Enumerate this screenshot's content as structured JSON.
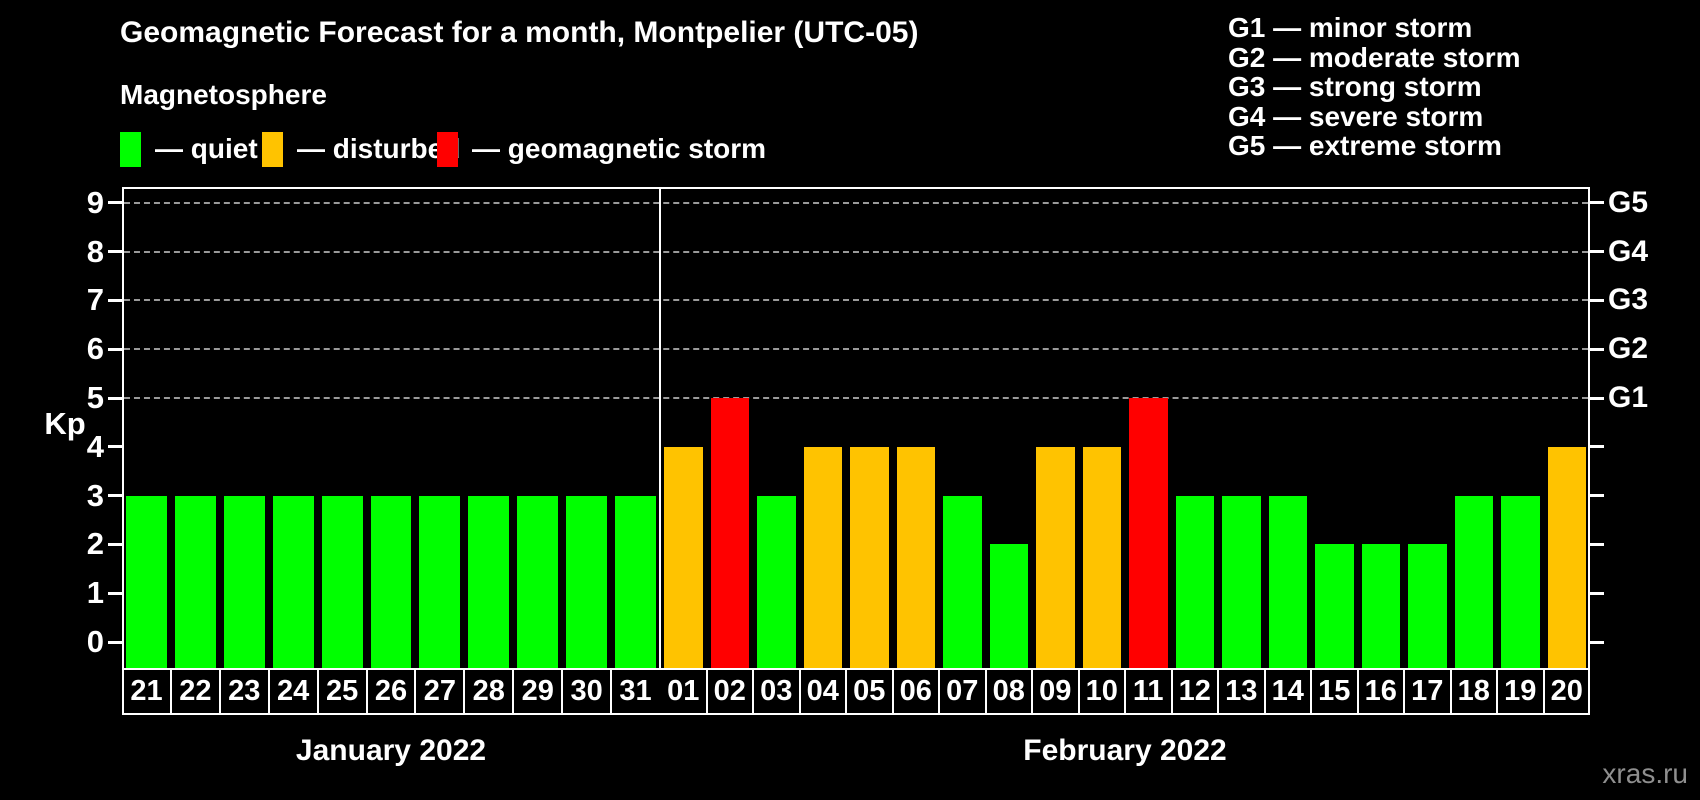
{
  "header": {
    "title": "Geomagnetic Forecast for a month, Montpelier (UTC-05)",
    "subtitle": "Magnetosphere",
    "legend": [
      {
        "status": "quiet",
        "label": "— quiet",
        "color": "#00ff00"
      },
      {
        "status": "disturbed",
        "label": "— disturbed",
        "color": "#ffc300"
      },
      {
        "status": "storm",
        "label": "— geomagnetic storm",
        "color": "#ff0000"
      }
    ],
    "g_scale_legend": [
      "G1 — minor storm",
      "G2 — moderate storm",
      "G3 — strong storm",
      "G4 — severe storm",
      "G5 — extreme storm"
    ]
  },
  "chart_data": {
    "type": "bar",
    "title": "Geomagnetic Forecast for a month, Montpelier (UTC-05)",
    "ylabel": "Kp",
    "ylim": [
      0,
      9
    ],
    "yticks": [
      "0",
      "1",
      "2",
      "3",
      "4",
      "5",
      "6",
      "7",
      "8",
      "9"
    ],
    "grid_levels": [
      5,
      6,
      7,
      8,
      9
    ],
    "right_axis_labels": [
      {
        "kp": 5,
        "label": "G1"
      },
      {
        "kp": 6,
        "label": "G2"
      },
      {
        "kp": 7,
        "label": "G3"
      },
      {
        "kp": 8,
        "label": "G4"
      },
      {
        "kp": 9,
        "label": "G5"
      }
    ],
    "status_colors": {
      "quiet": "#00ff00",
      "disturbed": "#ffc300",
      "storm": "#ff0000"
    },
    "months": [
      {
        "label": "January 2022",
        "days": [
          {
            "date": "21",
            "kp": 3,
            "status": "quiet"
          },
          {
            "date": "22",
            "kp": 3,
            "status": "quiet"
          },
          {
            "date": "23",
            "kp": 3,
            "status": "quiet"
          },
          {
            "date": "24",
            "kp": 3,
            "status": "quiet"
          },
          {
            "date": "25",
            "kp": 3,
            "status": "quiet"
          },
          {
            "date": "26",
            "kp": 3,
            "status": "quiet"
          },
          {
            "date": "27",
            "kp": 3,
            "status": "quiet"
          },
          {
            "date": "28",
            "kp": 3,
            "status": "quiet"
          },
          {
            "date": "29",
            "kp": 3,
            "status": "quiet"
          },
          {
            "date": "30",
            "kp": 3,
            "status": "quiet"
          },
          {
            "date": "31",
            "kp": 3,
            "status": "quiet"
          }
        ]
      },
      {
        "label": "February 2022",
        "days": [
          {
            "date": "01",
            "kp": 4,
            "status": "disturbed"
          },
          {
            "date": "02",
            "kp": 5,
            "status": "storm"
          },
          {
            "date": "03",
            "kp": 3,
            "status": "quiet"
          },
          {
            "date": "04",
            "kp": 4,
            "status": "disturbed"
          },
          {
            "date": "05",
            "kp": 4,
            "status": "disturbed"
          },
          {
            "date": "06",
            "kp": 4,
            "status": "disturbed"
          },
          {
            "date": "07",
            "kp": 3,
            "status": "quiet"
          },
          {
            "date": "08",
            "kp": 2,
            "status": "quiet"
          },
          {
            "date": "09",
            "kp": 4,
            "status": "disturbed"
          },
          {
            "date": "10",
            "kp": 4,
            "status": "disturbed"
          },
          {
            "date": "11",
            "kp": 5,
            "status": "storm"
          },
          {
            "date": "12",
            "kp": 3,
            "status": "quiet"
          },
          {
            "date": "13",
            "kp": 3,
            "status": "quiet"
          },
          {
            "date": "14",
            "kp": 3,
            "status": "quiet"
          },
          {
            "date": "15",
            "kp": 2,
            "status": "quiet"
          },
          {
            "date": "16",
            "kp": 2,
            "status": "quiet"
          },
          {
            "date": "17",
            "kp": 2,
            "status": "quiet"
          },
          {
            "date": "18",
            "kp": 3,
            "status": "quiet"
          },
          {
            "date": "19",
            "kp": 3,
            "status": "quiet"
          },
          {
            "date": "20",
            "kp": 4,
            "status": "disturbed"
          }
        ]
      }
    ]
  },
  "footer": {
    "watermark": "xras.ru"
  }
}
